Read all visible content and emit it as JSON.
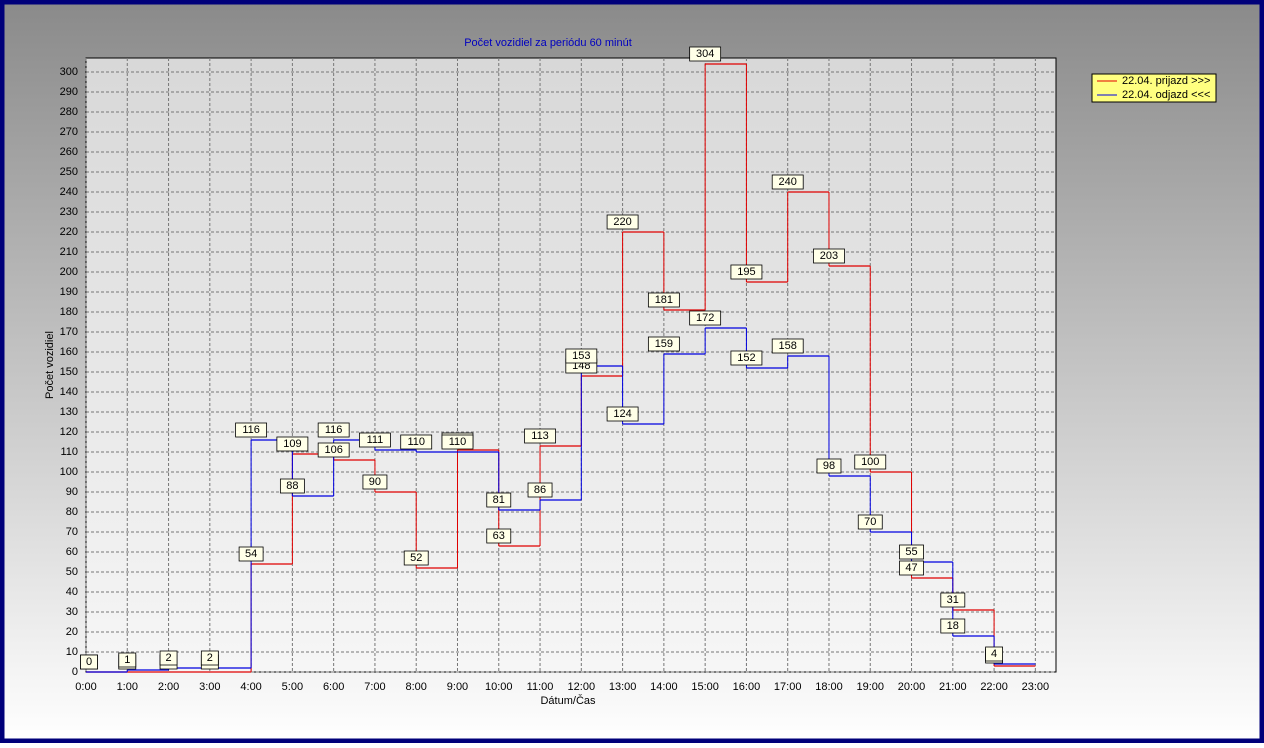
{
  "chart_data": {
    "type": "step",
    "title": "Počet vozidiel za periódu 60 minút",
    "x_label": "Dátum/Čas",
    "y_label": "Počet vozidiel",
    "x": [
      0,
      1,
      2,
      3,
      4,
      5,
      6,
      7,
      8,
      9,
      10,
      11,
      12,
      13,
      14,
      15,
      16,
      17,
      18,
      19,
      20,
      21,
      22
    ],
    "xlim": [
      0,
      23.5
    ],
    "xticks": [
      {
        "value": 0,
        "label": "0:00"
      },
      {
        "value": 1,
        "label": "1:00"
      },
      {
        "value": 2,
        "label": "2:00"
      },
      {
        "value": 3,
        "label": "3:00"
      },
      {
        "value": 4,
        "label": "4:00"
      },
      {
        "value": 5,
        "label": "5:00"
      },
      {
        "value": 6,
        "label": "6:00"
      },
      {
        "value": 7,
        "label": "7:00"
      },
      {
        "value": 8,
        "label": "8:00"
      },
      {
        "value": 9,
        "label": "9:00"
      },
      {
        "value": 10,
        "label": "10:00"
      },
      {
        "value": 11,
        "label": "11:00"
      },
      {
        "value": 12,
        "label": "12:00"
      },
      {
        "value": 13,
        "label": "13:00"
      },
      {
        "value": 14,
        "label": "14:00"
      },
      {
        "value": 15,
        "label": "15:00"
      },
      {
        "value": 16,
        "label": "16:00"
      },
      {
        "value": 17,
        "label": "17:00"
      },
      {
        "value": 18,
        "label": "18:00"
      },
      {
        "value": 19,
        "label": "19:00"
      },
      {
        "value": 20,
        "label": "20:00"
      },
      {
        "value": 21,
        "label": "21:00"
      },
      {
        "value": 22,
        "label": "22:00"
      },
      {
        "value": 23,
        "label": "23:00"
      }
    ],
    "ylim": [
      0,
      307
    ],
    "yticks": [
      0,
      10,
      20,
      30,
      40,
      50,
      60,
      70,
      80,
      90,
      100,
      110,
      120,
      130,
      140,
      150,
      160,
      170,
      180,
      190,
      200,
      210,
      220,
      230,
      240,
      250,
      260,
      270,
      280,
      290,
      300
    ],
    "grid": true,
    "legend_position": "right",
    "series": [
      {
        "name": "22.04.  prijazd >>>",
        "color": "#e00000",
        "values": [
          0,
          0,
          0,
          0,
          54,
          109,
          106,
          90,
          52,
          111,
          63,
          113,
          148,
          220,
          181,
          304,
          195,
          240,
          203,
          100,
          47,
          31,
          3
        ]
      },
      {
        "name": "22.04.  odjazd <<<",
        "color": "#0000e0",
        "values": [
          0,
          1,
          2,
          2,
          116,
          88,
          116,
          111,
          110,
          110,
          81,
          86,
          153,
          124,
          159,
          172,
          152,
          158,
          98,
          70,
          55,
          18,
          4
        ]
      }
    ]
  }
}
